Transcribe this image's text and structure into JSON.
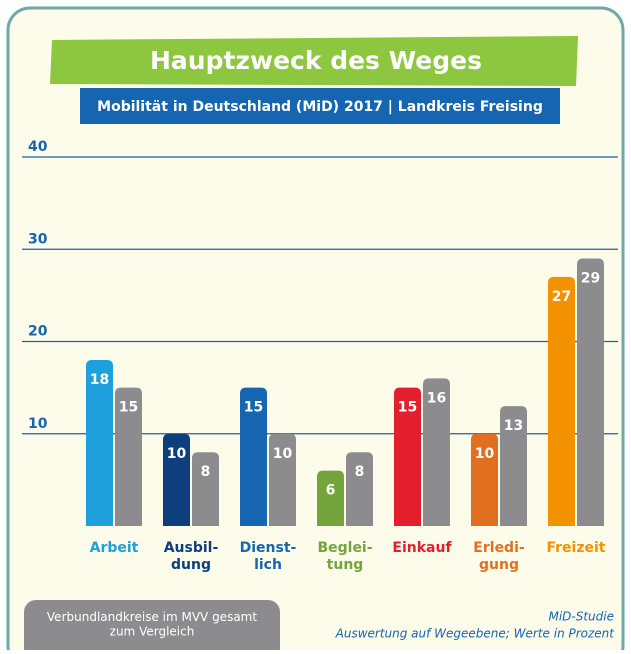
{
  "chart_data": {
    "type": "bar",
    "title": "Hauptzweck des Weges",
    "subtitle": "Mobilität in Deutschland (MiD) 2017 | Landkreis Freising",
    "categories": [
      "Arbeit",
      "Ausbil-\ndung",
      "Dienst-\nlich",
      "Beglei-\ntung",
      "Einkauf",
      "Erledi-\ngung",
      "Freizeit"
    ],
    "series": [
      {
        "colors": [
          "#1ea0dc",
          "#0d3f7c",
          "#1565b0",
          "#74a53c",
          "#e31e2d",
          "#e07020",
          "#f39200"
        ],
        "values": [
          18,
          10,
          15,
          6,
          15,
          10,
          27
        ]
      },
      {
        "name": "Verbundlandkreise im MVV gesamt\nzum Vergleich",
        "color": "#8c8c8e",
        "values": [
          15,
          8,
          10,
          8,
          16,
          13,
          29
        ]
      }
    ],
    "ylim": [
      0,
      40
    ],
    "yticks": [
      10,
      20,
      30,
      40
    ],
    "grid": true,
    "footnote": [
      "MiD-Studie",
      "Auswertung auf Wegeebene; Werte in Prozent"
    ]
  }
}
